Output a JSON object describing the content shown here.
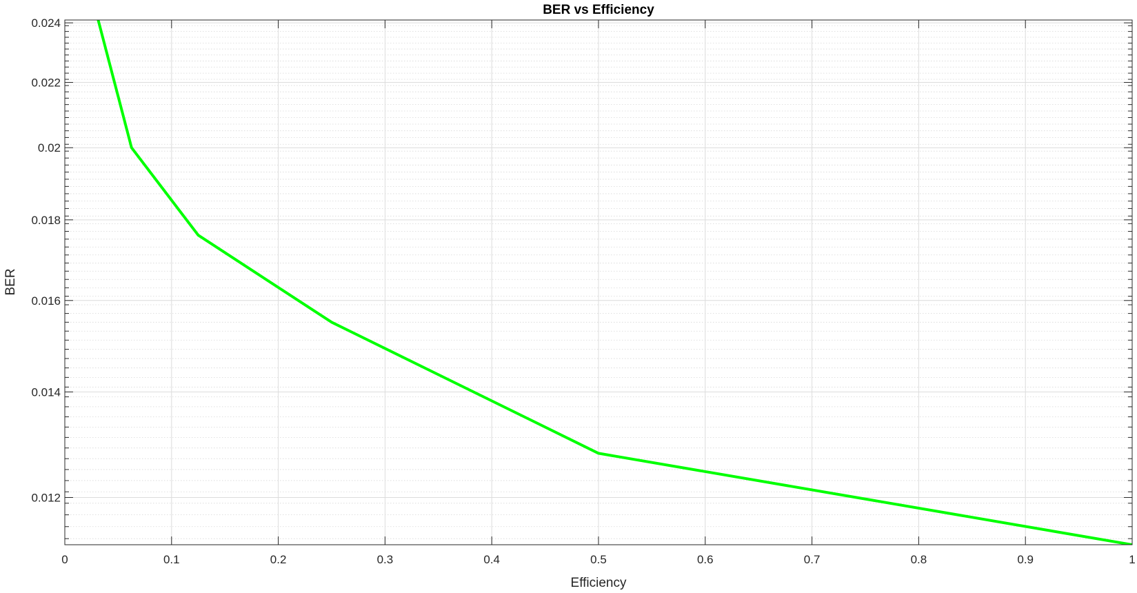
{
  "chart_data": {
    "type": "line",
    "title": "BER vs Efficiency",
    "xlabel": "Efficiency",
    "ylabel": "BER",
    "xlim": [
      0,
      1
    ],
    "ylim": [
      0.0112,
      0.0241
    ],
    "yscale": "log",
    "grid": true,
    "minor_grid": true,
    "xticks": [
      0,
      0.1,
      0.2,
      0.3,
      0.4,
      0.5,
      0.6,
      0.7,
      0.8,
      0.9,
      1
    ],
    "xtick_labels": [
      "0",
      "0.1",
      "0.2",
      "0.3",
      "0.4",
      "0.5",
      "0.6",
      "0.7",
      "0.8",
      "0.9",
      "1"
    ],
    "yticks": [
      0.012,
      0.014,
      0.016,
      0.018,
      0.02,
      0.022,
      0.024
    ],
    "ytick_labels": [
      "0.012",
      "0.014",
      "0.016",
      "0.018",
      "0.02",
      "0.022",
      "0.024"
    ],
    "yminor_ticks": [
      0.0113,
      0.0115,
      0.0117,
      0.0119,
      0.0121,
      0.0123,
      0.0125,
      0.0127,
      0.0129,
      0.0131,
      0.0133,
      0.0135,
      0.0137,
      0.0139,
      0.0141,
      0.0143,
      0.0145,
      0.0147,
      0.0149,
      0.0151,
      0.0153,
      0.0155,
      0.0157,
      0.0159,
      0.0161,
      0.0163,
      0.0165,
      0.0167,
      0.0169,
      0.0171,
      0.0173,
      0.0175,
      0.0177,
      0.0179,
      0.0181,
      0.0183,
      0.0185,
      0.0187,
      0.0189,
      0.0191,
      0.0193,
      0.0195,
      0.0197,
      0.0199,
      0.0201,
      0.0203,
      0.0205,
      0.0207,
      0.0209,
      0.0211,
      0.0213,
      0.0215,
      0.0217,
      0.0219,
      0.0221,
      0.0223,
      0.0225,
      0.0227,
      0.0229,
      0.0231,
      0.0233,
      0.0235,
      0.0237,
      0.0239
    ],
    "series": [
      {
        "color": "#00ff00",
        "x": [
          0.03125,
          0.0625,
          0.125,
          0.25,
          0.5,
          1.0
        ],
        "y": [
          0.0241,
          0.02,
          0.0176,
          0.0155,
          0.0128,
          0.0112
        ]
      }
    ]
  }
}
